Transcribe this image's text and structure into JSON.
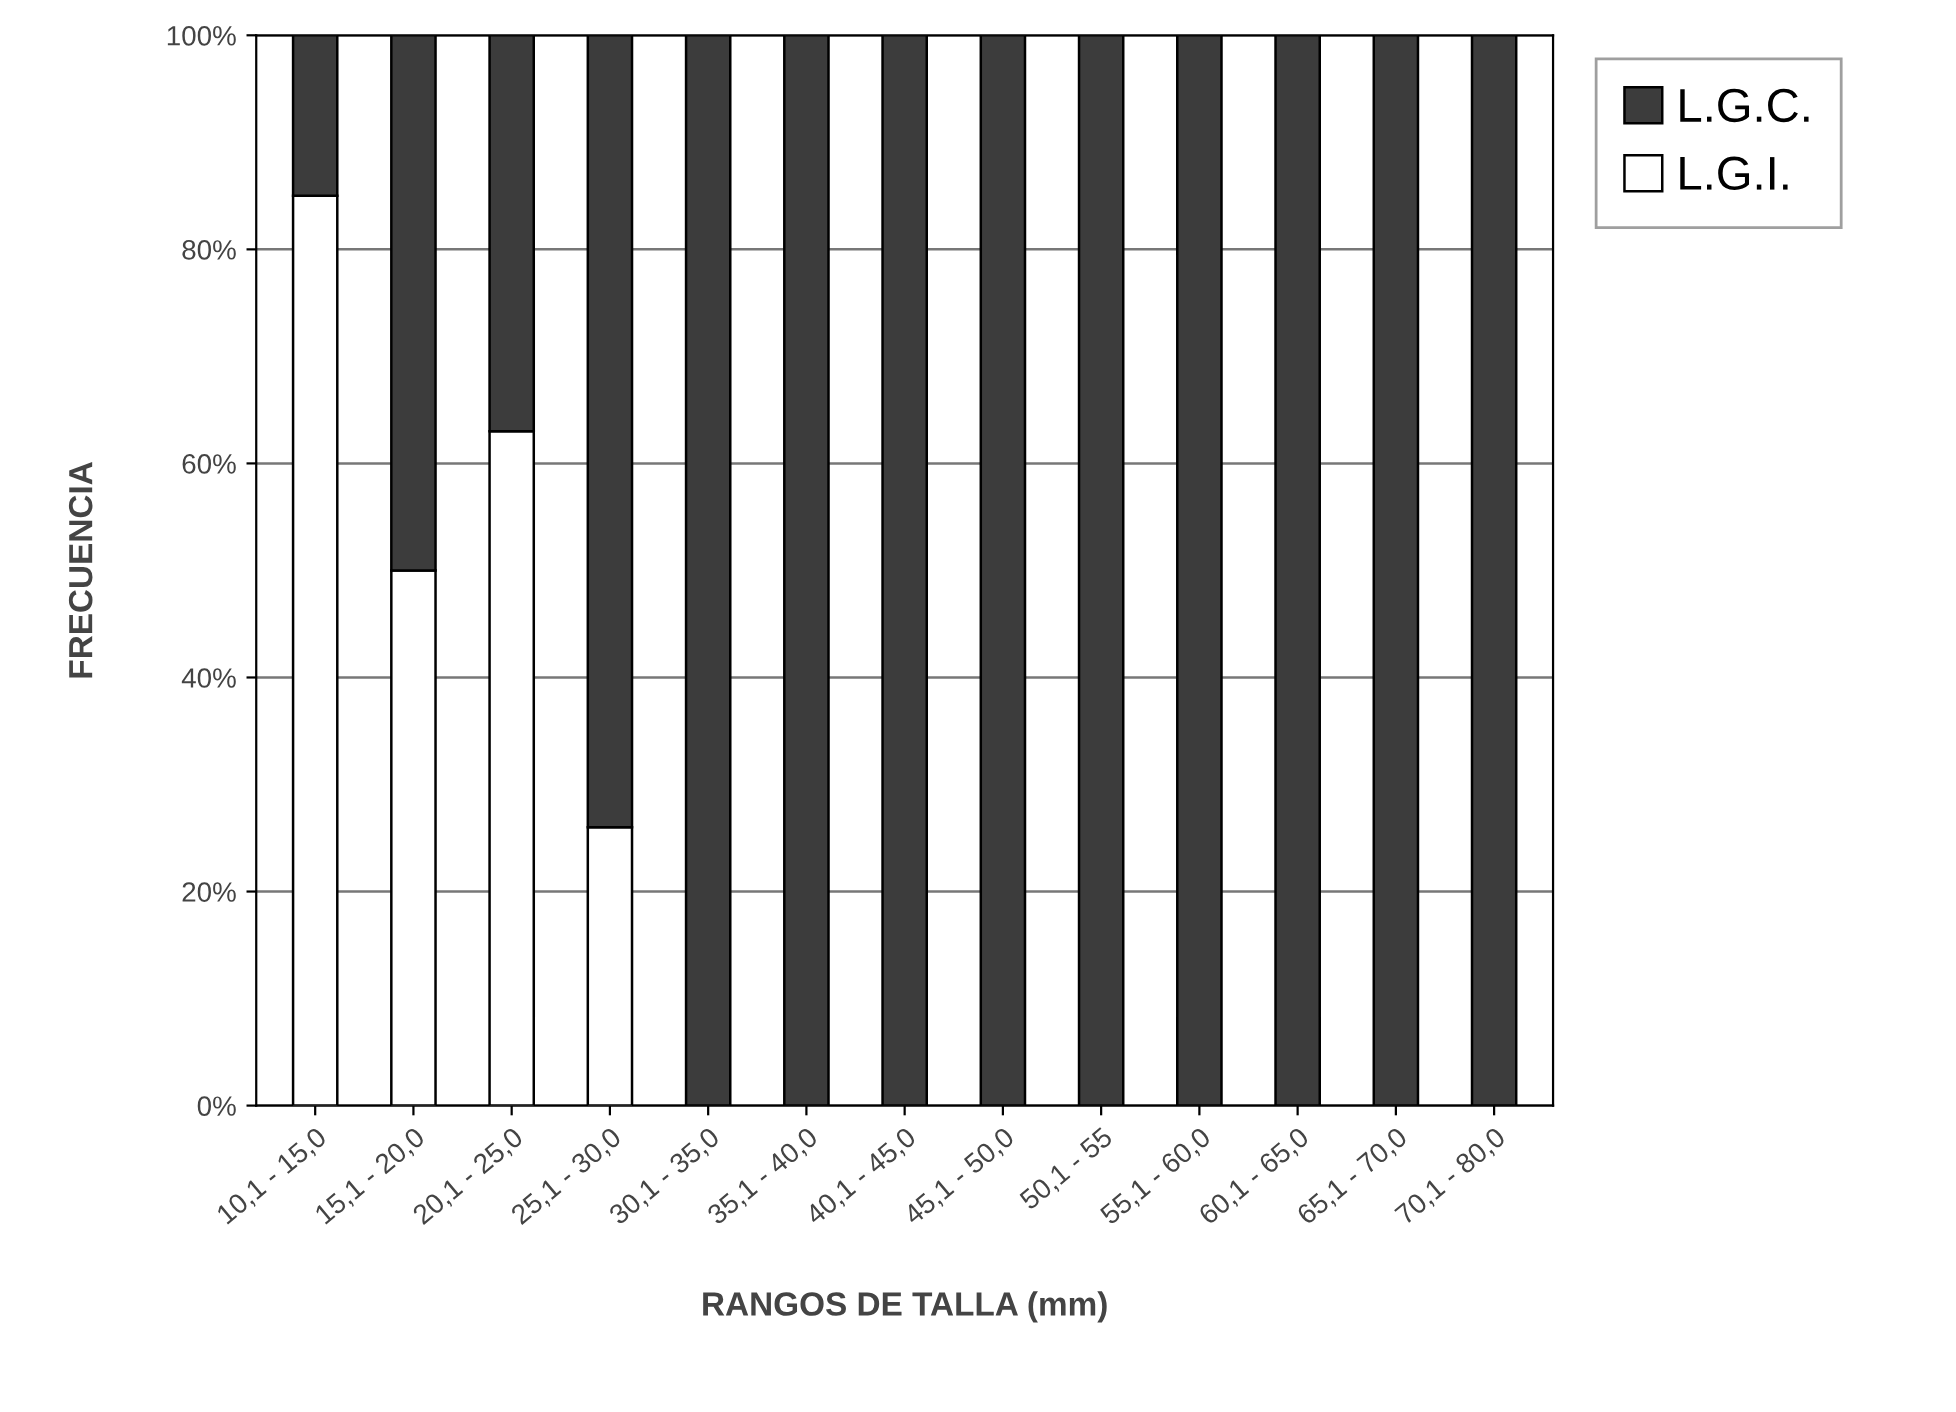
{
  "chart_data": {
    "type": "bar",
    "stacked": true,
    "xlabel": "RANGOS DE TALLA (mm)",
    "ylabel": "FRECUENCIA",
    "categories": [
      "10,1 - 15,0",
      "15,1 - 20,0",
      "20,1 - 25,0",
      "25,1 - 30,0",
      "30,1 - 35,0",
      "35,1 - 40,0",
      "40,1 - 45,0",
      "45,1 - 50,0",
      "50,1 - 55",
      "55,1 - 60,0",
      "60,1 - 65,0",
      "65,1 - 70,0",
      "70,1 - 80,0"
    ],
    "series": [
      {
        "name": "L.G.I.",
        "color": "#ffffff",
        "values": [
          85,
          50,
          63,
          26,
          0,
          0,
          0,
          0,
          0,
          0,
          0,
          0,
          0
        ]
      },
      {
        "name": "L.G.C.",
        "color": "#3c3c3c",
        "values": [
          15,
          50,
          37,
          74,
          100,
          100,
          100,
          100,
          100,
          100,
          100,
          100,
          100
        ]
      }
    ],
    "ylim": [
      0,
      100
    ],
    "yticks": [
      {
        "value": 0,
        "label": "0%"
      },
      {
        "value": 20,
        "label": "20%"
      },
      {
        "value": 40,
        "label": "40%"
      },
      {
        "value": 60,
        "label": "60%"
      },
      {
        "value": 80,
        "label": "80%"
      },
      {
        "value": 100,
        "label": "100%"
      }
    ],
    "grid": "y",
    "legend": "top right"
  }
}
